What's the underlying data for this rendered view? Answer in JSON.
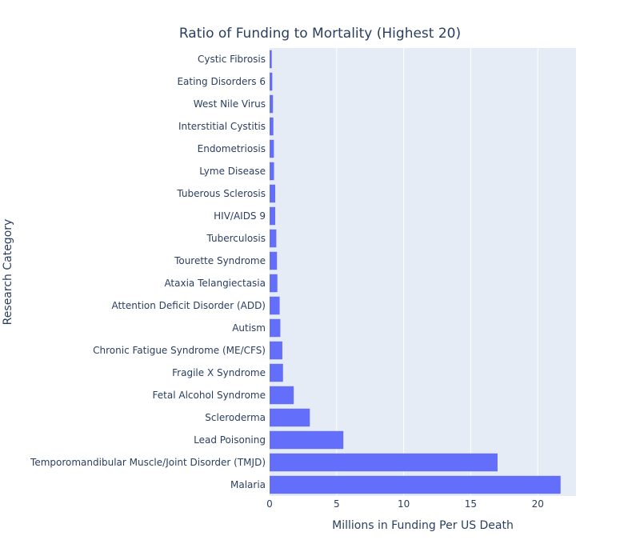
{
  "chart_data": {
    "type": "bar",
    "orientation": "horizontal",
    "title": "Ratio of Funding to Mortality (Highest 20)",
    "xlabel": "Millions in Funding Per US Death",
    "ylabel": "Research Category",
    "xlim": [
      0,
      22.85
    ],
    "xticks": [
      0,
      5,
      10,
      15,
      20
    ],
    "grid": true,
    "bar_color": "#636efa",
    "plot_bg": "#e5ecf6",
    "categories": [
      "Malaria",
      "Temporomandibular Muscle/Joint Disorder (TMJD)",
      "Lead Poisoning",
      "Scleroderma",
      "Fetal Alcohol Syndrome",
      "Fragile X Syndrome",
      "Chronic Fatigue Syndrome (ME/CFS)",
      "Autism",
      "Attention Deficit Disorder (ADD)",
      "Ataxia Telangiectasia",
      "Tourette Syndrome",
      "Tuberculosis",
      "HIV/AIDS 9",
      "Tuberous Sclerosis",
      "Lyme Disease",
      "Endometriosis",
      "Interstitial Cystitis",
      "West Nile Virus",
      "Eating Disorders 6",
      "Cystic Fibrosis"
    ],
    "values": [
      21.7,
      17.0,
      5.5,
      3.0,
      1.8,
      1.0,
      0.95,
      0.8,
      0.75,
      0.58,
      0.55,
      0.5,
      0.42,
      0.42,
      0.33,
      0.32,
      0.28,
      0.25,
      0.2,
      0.16
    ]
  }
}
